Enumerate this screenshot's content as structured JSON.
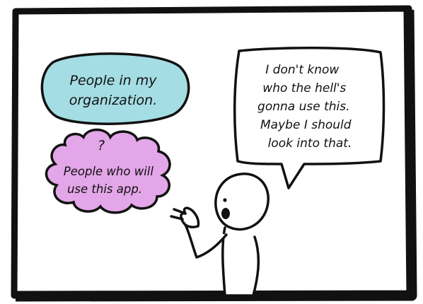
{
  "bubbles": {
    "organization": {
      "lines": [
        "People in my",
        "organization."
      ],
      "fill": "#a4dde3"
    },
    "app_users": {
      "mark": "?",
      "lines": [
        "People who will",
        "use this app."
      ],
      "fill": "#e3a6e8"
    },
    "speech": {
      "lines": [
        "I don't know",
        "who the hell's",
        "gonna use this.",
        "Maybe I should",
        "look into that."
      ],
      "fill": "#ffffff"
    }
  },
  "colors": {
    "ink": "#111111",
    "panel_background": "#ffffff",
    "panel_border": "#111111"
  }
}
